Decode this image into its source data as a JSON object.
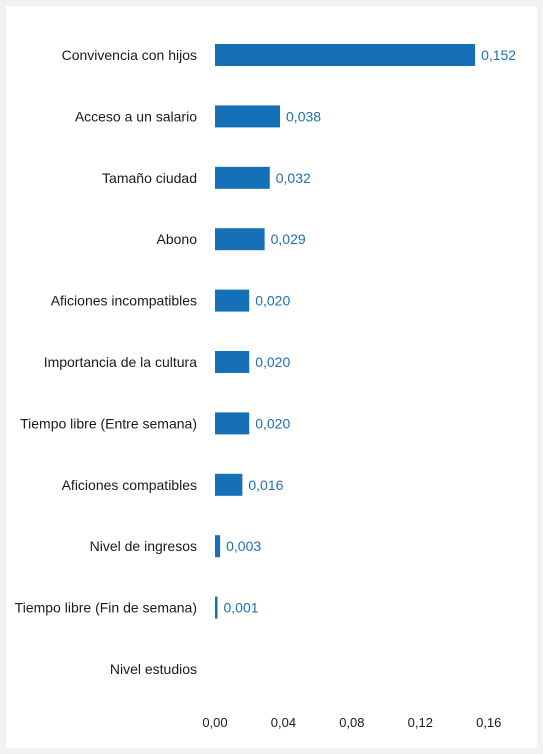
{
  "chart_data": {
    "type": "bar",
    "orientation": "horizontal",
    "title": "",
    "xlabel": "",
    "ylabel": "",
    "categories": [
      "Convivencia con hijos",
      "Acceso a un salario",
      "Tamaño ciudad",
      "Abono",
      "Aficiones incompatibles",
      "Importancia de la cultura",
      "Tiempo libre (Entre semana)",
      "Aficiones compatibles",
      "Nivel de ingresos",
      "Tiempo libre (Fin de semana)",
      "Nivel estudios"
    ],
    "values": [
      0.152,
      0.038,
      0.032,
      0.029,
      0.02,
      0.02,
      0.02,
      0.016,
      0.003,
      0.001,
      0.0
    ],
    "value_labels": [
      "0,152",
      "0,038",
      "0,032",
      "0,029",
      "0,020",
      "0,020",
      "0,020",
      "0,016",
      "0,003",
      "0,001",
      ""
    ],
    "xlim": [
      0,
      0.16
    ],
    "xticks": [
      0,
      0.04,
      0.08,
      0.12,
      0.16
    ],
    "xtick_labels": [
      "0,00",
      "0,04",
      "0,08",
      "0,12",
      "0,16"
    ],
    "grid": false,
    "legend": "none",
    "colors": {
      "bar": "#1670b8",
      "value_label": "#1f6fb2",
      "background": "#f2f2f2",
      "plot_background": "#ffffff"
    }
  }
}
